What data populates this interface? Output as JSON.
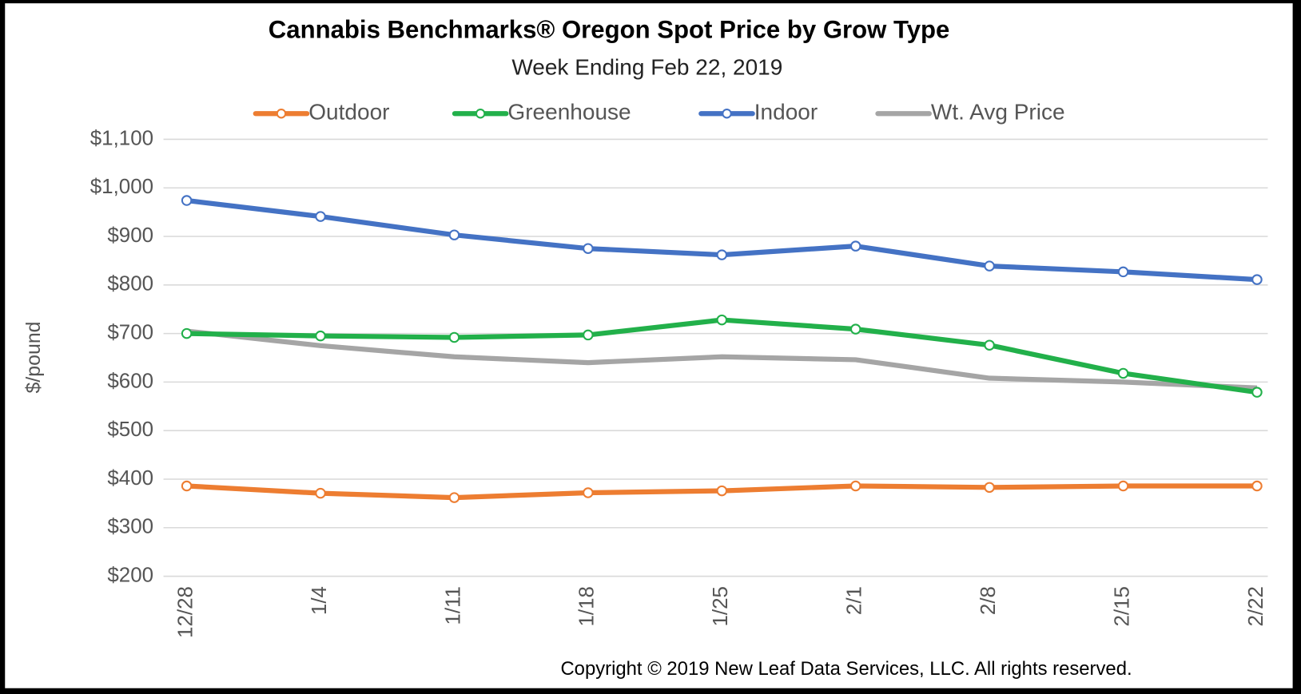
{
  "chart_data": {
    "type": "line",
    "title": "Cannabis Benchmarks® Oregon Spot Price by Grow Type",
    "subtitle": "Week Ending Feb 22, 2019",
    "y_label": "$/pound",
    "annotation": "Copyright © 2019 New Leaf Data Services, LLC. All rights reserved.",
    "categories": [
      "12/28",
      "1/4",
      "1/11",
      "1/18",
      "1/25",
      "2/1",
      "2/8",
      "2/15",
      "2/22"
    ],
    "series": [
      {
        "name": "Outdoor",
        "color": "#ed7d31",
        "markers": true,
        "values": [
          386,
          371,
          362,
          372,
          376,
          386,
          383,
          386,
          386
        ]
      },
      {
        "name": "Greenhouse",
        "color": "#22b04a",
        "markers": true,
        "values": [
          700,
          695,
          692,
          697,
          728,
          709,
          676,
          618,
          579
        ]
      },
      {
        "name": "Indoor",
        "color": "#4472c4",
        "markers": true,
        "values": [
          974,
          941,
          903,
          875,
          862,
          880,
          839,
          827,
          811
        ]
      },
      {
        "name": "Wt. Avg Price",
        "color": "#a5a5a5",
        "markers": false,
        "values": [
          705,
          675,
          652,
          640,
          652,
          646,
          608,
          600,
          588
        ]
      }
    ],
    "ylim": [
      200,
      1100
    ],
    "yticks": [
      {
        "value": 200,
        "label": "$200"
      },
      {
        "value": 300,
        "label": "$300"
      },
      {
        "value": 400,
        "label": "$400"
      },
      {
        "value": 500,
        "label": "$500"
      },
      {
        "value": 600,
        "label": "$600"
      },
      {
        "value": 700,
        "label": "$700"
      },
      {
        "value": 800,
        "label": "$800"
      },
      {
        "value": 900,
        "label": "$900"
      },
      {
        "value": 1000,
        "label": "$1,000"
      },
      {
        "value": 1100,
        "label": "$1,100"
      }
    ],
    "grid": true,
    "legend": "top"
  }
}
